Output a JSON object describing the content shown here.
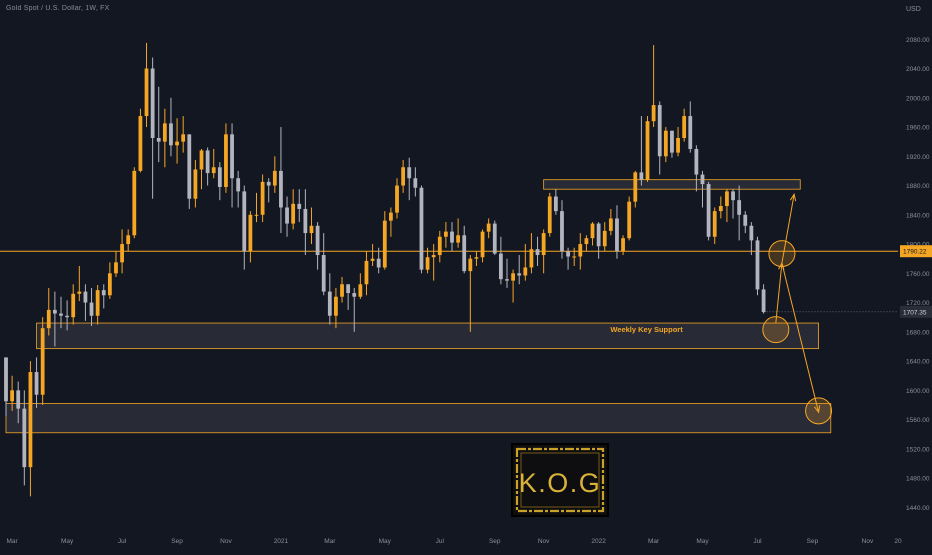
{
  "header": {
    "symbol_title": "Gold Spot / U.S. Dollar, 1W, FX"
  },
  "chart_data": {
    "type": "candlestick",
    "title": "Gold Spot / U.S. Dollar, 1W, FX",
    "currency_label": "USD",
    "y_ticks": [
      2080,
      2040,
      2000,
      1960,
      1920,
      1880,
      1840,
      1800,
      1760,
      1720,
      1680,
      1640,
      1600,
      1560,
      1520,
      1480,
      1440
    ],
    "y_tick_labels": [
      "2080.00",
      "2040.00",
      "2000.00",
      "1960.00",
      "1920.00",
      "1880.00",
      "1840.00",
      "1800.00",
      "1760.00",
      "1720.00",
      "1680.00",
      "1640.00",
      "1600.00",
      "1560.00",
      "1520.00",
      "1480.00",
      "1440.00"
    ],
    "ylim": [
      1420,
      2120
    ],
    "x_axis_range": [
      "2020-02-24",
      "2022-12-12"
    ],
    "x_ticks": [
      {
        "date": "2020-03-02",
        "label": "Mar"
      },
      {
        "date": "2020-05-04",
        "label": "May"
      },
      {
        "date": "2020-07-06",
        "label": "Jul"
      },
      {
        "date": "2020-09-07",
        "label": "Sep"
      },
      {
        "date": "2020-11-02",
        "label": "Nov"
      },
      {
        "date": "2021-01-04",
        "label": "2021"
      },
      {
        "date": "2021-03-01",
        "label": "Mar"
      },
      {
        "date": "2021-05-03",
        "label": "May"
      },
      {
        "date": "2021-07-05",
        "label": "Jul"
      },
      {
        "date": "2021-09-06",
        "label": "Sep"
      },
      {
        "date": "2021-11-01",
        "label": "Nov"
      },
      {
        "date": "2022-01-03",
        "label": "2022"
      },
      {
        "date": "2022-03-07",
        "label": "Mar"
      },
      {
        "date": "2022-05-02",
        "label": "May"
      },
      {
        "date": "2022-07-04",
        "label": "Jul"
      },
      {
        "date": "2022-09-05",
        "label": "Sep"
      },
      {
        "date": "2022-11-07",
        "label": "Nov"
      },
      {
        "date": "2022-12-12",
        "label": "20"
      }
    ],
    "candles": [
      [
        "2020-02-24",
        1645,
        1645,
        1565,
        1585
      ],
      [
        "2020-03-02",
        1585,
        1620,
        1572,
        1600
      ],
      [
        "2020-03-09",
        1600,
        1612,
        1555,
        1575
      ],
      [
        "2020-03-16",
        1575,
        1600,
        1470,
        1495
      ],
      [
        "2020-03-23",
        1495,
        1640,
        1455,
        1625
      ],
      [
        "2020-03-30",
        1625,
        1645,
        1576,
        1594
      ],
      [
        "2020-04-06",
        1594,
        1700,
        1580,
        1685
      ],
      [
        "2020-04-13",
        1685,
        1740,
        1675,
        1710
      ],
      [
        "2020-04-20",
        1710,
        1735,
        1660,
        1705
      ],
      [
        "2020-04-27",
        1705,
        1728,
        1685,
        1702
      ],
      [
        "2020-05-04",
        1702,
        1723,
        1682,
        1700
      ],
      [
        "2020-05-11",
        1700,
        1745,
        1690,
        1732
      ],
      [
        "2020-05-18",
        1732,
        1770,
        1722,
        1735
      ],
      [
        "2020-05-25",
        1735,
        1745,
        1695,
        1720
      ],
      [
        "2020-06-01",
        1720,
        1740,
        1688,
        1702
      ],
      [
        "2020-06-08",
        1702,
        1744,
        1690,
        1737
      ],
      [
        "2020-06-15",
        1737,
        1745,
        1712,
        1730
      ],
      [
        "2020-06-22",
        1730,
        1775,
        1725,
        1760
      ],
      [
        "2020-06-29",
        1760,
        1790,
        1755,
        1775
      ],
      [
        "2020-07-06",
        1775,
        1820,
        1760,
        1800
      ],
      [
        "2020-07-13",
        1800,
        1820,
        1790,
        1812
      ],
      [
        "2020-07-20",
        1812,
        1905,
        1808,
        1900
      ],
      [
        "2020-07-27",
        1900,
        1985,
        1898,
        1975
      ],
      [
        "2020-08-03",
        1975,
        2075,
        1960,
        2040
      ],
      [
        "2020-08-10",
        2040,
        2055,
        1862,
        1945
      ],
      [
        "2020-08-17",
        1945,
        2015,
        1912,
        1940
      ],
      [
        "2020-08-24",
        1940,
        1985,
        1905,
        1965
      ],
      [
        "2020-08-31",
        1965,
        2000,
        1920,
        1935
      ],
      [
        "2020-09-07",
        1935,
        1972,
        1910,
        1940
      ],
      [
        "2020-09-14",
        1940,
        1975,
        1925,
        1950
      ],
      [
        "2020-09-21",
        1950,
        1950,
        1848,
        1862
      ],
      [
        "2020-09-28",
        1862,
        1915,
        1850,
        1902
      ],
      [
        "2020-10-05",
        1902,
        1930,
        1875,
        1928
      ],
      [
        "2020-10-12",
        1928,
        1932,
        1880,
        1897
      ],
      [
        "2020-10-19",
        1897,
        1930,
        1890,
        1905
      ],
      [
        "2020-10-26",
        1905,
        1912,
        1860,
        1878
      ],
      [
        "2020-11-02",
        1878,
        1965,
        1870,
        1950
      ],
      [
        "2020-11-09",
        1950,
        1965,
        1850,
        1890
      ],
      [
        "2020-11-16",
        1890,
        1900,
        1850,
        1872
      ],
      [
        "2020-11-23",
        1872,
        1880,
        1765,
        1790
      ],
      [
        "2020-11-30",
        1790,
        1845,
        1775,
        1840
      ],
      [
        "2020-12-07",
        1840,
        1870,
        1830,
        1840
      ],
      [
        "2020-12-14",
        1840,
        1895,
        1830,
        1885
      ],
      [
        "2020-12-21",
        1885,
        1890,
        1857,
        1880
      ],
      [
        "2020-12-28",
        1880,
        1920,
        1870,
        1900
      ],
      [
        "2021-01-04",
        1900,
        1960,
        1815,
        1850
      ],
      [
        "2021-01-11",
        1850,
        1865,
        1810,
        1828
      ],
      [
        "2021-01-18",
        1828,
        1875,
        1820,
        1855
      ],
      [
        "2021-01-25",
        1855,
        1875,
        1830,
        1848
      ],
      [
        "2021-02-01",
        1848,
        1875,
        1785,
        1815
      ],
      [
        "2021-02-08",
        1815,
        1850,
        1800,
        1825
      ],
      [
        "2021-02-15",
        1825,
        1830,
        1765,
        1785
      ],
      [
        "2021-02-22",
        1785,
        1815,
        1730,
        1735
      ],
      [
        "2021-03-01",
        1735,
        1760,
        1690,
        1702
      ],
      [
        "2021-03-08",
        1702,
        1740,
        1685,
        1728
      ],
      [
        "2021-03-15",
        1728,
        1755,
        1720,
        1745
      ],
      [
        "2021-03-22",
        1745,
        1745,
        1710,
        1733
      ],
      [
        "2021-03-29",
        1733,
        1740,
        1680,
        1728
      ],
      [
        "2021-04-05",
        1728,
        1760,
        1725,
        1745
      ],
      [
        "2021-04-12",
        1745,
        1790,
        1730,
        1777
      ],
      [
        "2021-04-19",
        1777,
        1800,
        1770,
        1780
      ],
      [
        "2021-04-26",
        1780,
        1795,
        1760,
        1768
      ],
      [
        "2021-05-03",
        1768,
        1845,
        1765,
        1832
      ],
      [
        "2021-05-10",
        1832,
        1850,
        1810,
        1843
      ],
      [
        "2021-05-17",
        1843,
        1890,
        1835,
        1880
      ],
      [
        "2021-05-24",
        1880,
        1915,
        1870,
        1905
      ],
      [
        "2021-05-31",
        1905,
        1918,
        1860,
        1890
      ],
      [
        "2021-06-07",
        1890,
        1905,
        1865,
        1877
      ],
      [
        "2021-06-14",
        1877,
        1880,
        1760,
        1765
      ],
      [
        "2021-06-21",
        1765,
        1795,
        1760,
        1782
      ],
      [
        "2021-06-28",
        1782,
        1800,
        1750,
        1785
      ],
      [
        "2021-07-05",
        1785,
        1818,
        1775,
        1810
      ],
      [
        "2021-07-12",
        1810,
        1830,
        1795,
        1817
      ],
      [
        "2021-07-19",
        1817,
        1830,
        1790,
        1802
      ],
      [
        "2021-07-26",
        1802,
        1835,
        1795,
        1812
      ],
      [
        "2021-08-02",
        1812,
        1825,
        1760,
        1763
      ],
      [
        "2021-08-09",
        1763,
        1785,
        1680,
        1780
      ],
      [
        "2021-08-16",
        1780,
        1790,
        1770,
        1782
      ],
      [
        "2021-08-23",
        1782,
        1820,
        1775,
        1817
      ],
      [
        "2021-08-30",
        1817,
        1835,
        1808,
        1828
      ],
      [
        "2021-09-06",
        1828,
        1832,
        1785,
        1787
      ],
      [
        "2021-09-13",
        1787,
        1810,
        1745,
        1752
      ],
      [
        "2021-09-20",
        1752,
        1780,
        1740,
        1750
      ],
      [
        "2021-09-27",
        1750,
        1765,
        1720,
        1760
      ],
      [
        "2021-10-04",
        1760,
        1785,
        1745,
        1757
      ],
      [
        "2021-10-11",
        1757,
        1800,
        1750,
        1768
      ],
      [
        "2021-10-18",
        1768,
        1815,
        1760,
        1793
      ],
      [
        "2021-10-25",
        1793,
        1810,
        1770,
        1785
      ],
      [
        "2021-11-01",
        1785,
        1820,
        1760,
        1815
      ],
      [
        "2021-11-08",
        1815,
        1870,
        1810,
        1865
      ],
      [
        "2021-11-15",
        1865,
        1875,
        1840,
        1845
      ],
      [
        "2021-11-22",
        1845,
        1860,
        1780,
        1790
      ],
      [
        "2021-11-29",
        1790,
        1795,
        1765,
        1783
      ],
      [
        "2021-12-06",
        1783,
        1795,
        1770,
        1783
      ],
      [
        "2021-12-13",
        1783,
        1815,
        1765,
        1800
      ],
      [
        "2021-12-20",
        1800,
        1812,
        1790,
        1808
      ],
      [
        "2021-12-27",
        1808,
        1830,
        1798,
        1828
      ],
      [
        "2022-01-03",
        1828,
        1830,
        1780,
        1797
      ],
      [
        "2022-01-10",
        1797,
        1830,
        1790,
        1818
      ],
      [
        "2022-01-17",
        1818,
        1848,
        1812,
        1835
      ],
      [
        "2022-01-24",
        1835,
        1853,
        1780,
        1790
      ],
      [
        "2022-01-31",
        1790,
        1812,
        1785,
        1808
      ],
      [
        "2022-02-07",
        1808,
        1865,
        1805,
        1858
      ],
      [
        "2022-02-14",
        1858,
        1900,
        1850,
        1898
      ],
      [
        "2022-02-21",
        1898,
        1975,
        1880,
        1888
      ],
      [
        "2022-02-28",
        1888,
        1975,
        1885,
        1968
      ],
      [
        "2022-03-07",
        1968,
        2072,
        1960,
        1990
      ],
      [
        "2022-03-14",
        1990,
        1995,
        1895,
        1920
      ],
      [
        "2022-03-21",
        1920,
        1960,
        1912,
        1955
      ],
      [
        "2022-03-28",
        1955,
        1950,
        1918,
        1925
      ],
      [
        "2022-04-04",
        1925,
        1960,
        1920,
        1945
      ],
      [
        "2022-04-11",
        1945,
        1985,
        1940,
        1975
      ],
      [
        "2022-04-18",
        1975,
        1995,
        1925,
        1930
      ],
      [
        "2022-04-25",
        1930,
        1935,
        1872,
        1895
      ],
      [
        "2022-05-02",
        1895,
        1900,
        1850,
        1882
      ],
      [
        "2022-05-09",
        1882,
        1885,
        1805,
        1810
      ],
      [
        "2022-05-16",
        1810,
        1850,
        1800,
        1845
      ],
      [
        "2022-05-23",
        1845,
        1865,
        1835,
        1852
      ],
      [
        "2022-05-30",
        1852,
        1875,
        1830,
        1872
      ],
      [
        "2022-06-06",
        1872,
        1875,
        1835,
        1860
      ],
      [
        "2022-06-13",
        1860,
        1880,
        1805,
        1840
      ],
      [
        "2022-06-20",
        1840,
        1845,
        1815,
        1825
      ],
      [
        "2022-06-27",
        1825,
        1830,
        1785,
        1805
      ],
      [
        "2022-07-04",
        1805,
        1810,
        1730,
        1738
      ],
      [
        "2022-07-11",
        1738,
        1745,
        1705,
        1707
      ]
    ],
    "current_price_label": "1707.35",
    "current_price": 1707.35,
    "resistance_line_label": "1790.22",
    "resistance_line_price": 1790.22,
    "zones": [
      {
        "name": "upper-resistance-zone",
        "x_from": "2021-11-01",
        "x_to": "2022-08-22",
        "price_high": 1888,
        "price_low": 1875,
        "label": ""
      },
      {
        "name": "weekly-key-support-zone",
        "x_from": "2020-03-30",
        "x_to": "2022-09-12",
        "price_high": 1692,
        "price_low": 1657,
        "label": "Weekly Key Support"
      },
      {
        "name": "lower-support-zone",
        "x_from": "2020-02-24",
        "x_to": "2022-09-26",
        "price_high": 1582,
        "price_low": 1542,
        "label": ""
      }
    ],
    "projections": [
      {
        "from": [
          "2022-07-25",
          1692
        ],
        "to": [
          "2022-08-01",
          1774
        ]
      },
      {
        "from": [
          "2022-08-01",
          1774
        ],
        "to": [
          "2022-08-15",
          1868
        ]
      },
      {
        "from": [
          "2022-08-01",
          1774
        ],
        "to": [
          "2022-09-12",
          1570
        ]
      }
    ],
    "circles": [
      {
        "at": [
          "2022-07-25",
          1683
        ]
      },
      {
        "at": [
          "2022-08-01",
          1787
        ]
      },
      {
        "at": [
          "2022-09-12",
          1572
        ]
      }
    ],
    "logo": {
      "text": "K.O.G"
    },
    "colors": {
      "background": "#131722",
      "bull": "#f5a623",
      "bear": "#b2b5be",
      "accent": "#f5a623",
      "zone_fill": "#3a3d47",
      "axis_text": "#8a8f9c"
    }
  }
}
